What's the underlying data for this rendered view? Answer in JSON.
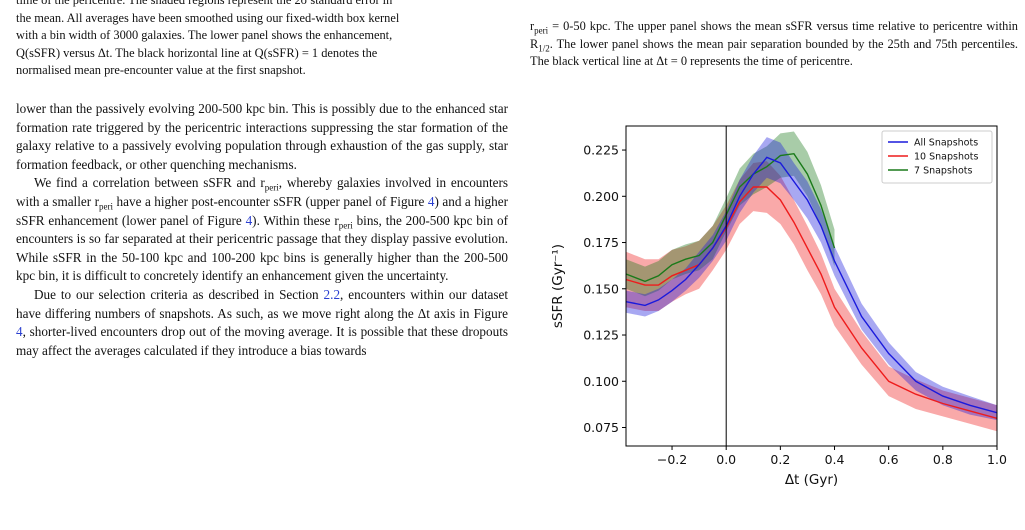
{
  "left": {
    "caption_lines": [
      "time of the pericentre. The shaded regions represent the 2σ standard error in",
      "the mean. All averages have been smoothed using our fixed-width box kernel",
      "with a bin width of 3000 galaxies. The lower panel shows the enhancement,",
      "Q(sSFR) versus Δt. The black horizontal line at Q(sSFR) = 1 denotes the",
      "normalised mean pre-encounter value at the first snapshot."
    ],
    "p1": "lower than the passively evolving 200-500 kpc bin. This is possibly due to the enhanced star formation rate triggered by the pericentric interactions suppressing the star formation of the galaxy relative to a passively evolving population through exhaustion of the gas supply, star formation feedback, or other quenching mechanisms.",
    "p2_a": "We find a correlation between sSFR and r",
    "p2_sub1": "peri",
    "p2_b": ", whereby galaxies involved in encounters with a smaller r",
    "p2_sub2": "peri",
    "p2_c": " have a higher post-encounter sSFR (upper panel of Figure ",
    "p2_ref1": "4",
    "p2_d": ") and a higher sSFR enhancement (lower panel of Figure ",
    "p2_ref2": "4",
    "p2_e": "). Within these r",
    "p2_sub3": "peri",
    "p2_f": " bins, the 200-500 kpc bin of encounters is so far separated at their pericentric passage that they display passive evolution. While sSFR in the 50-100 kpc and 100-200 kpc bins is generally higher than the 200-500 kpc bin, it is difficult to concretely identify an enhancement given the uncertainty.",
    "p3_a": "Due to our selection criteria as described in Section ",
    "p3_ref": "2.2",
    "p3_b": ", encounters within our dataset have differing numbers of snapshots. As such, as we move right along the Δt axis in Figure ",
    "p3_ref2": "4",
    "p3_c": ", shorter-lived encounters drop out of the moving average. It is possible that these dropouts may affect the averages calculated if they introduce a bias towards"
  },
  "right": {
    "cap_a": "r",
    "cap_sub1": "peri",
    "cap_b": " = 0-50 kpc. The upper panel shows the mean sSFR versus time relative to pericentre within R",
    "cap_sub2": "1/2",
    "cap_c": ". The lower panel shows the mean pair separation bounded by the 25th and 75th percentiles. The black vertical line at Δt = 0 represents the time of pericentre."
  },
  "chart_data": {
    "type": "line",
    "title": "",
    "xlabel": "Δt (Gyr)",
    "ylabel": "sSFR (Gyr⁻¹)",
    "xlim": [
      -0.37,
      1.0
    ],
    "ylim": [
      0.065,
      0.238
    ],
    "xticks": [
      -0.2,
      0.0,
      0.2,
      0.4,
      0.6,
      0.8,
      1.0
    ],
    "xtick_labels": [
      "−0.2",
      "0.0",
      "0.2",
      "0.4",
      "0.6",
      "0.8",
      "1.0"
    ],
    "yticks": [
      0.075,
      0.1,
      0.125,
      0.15,
      0.175,
      0.2,
      0.225
    ],
    "ytick_labels": [
      "0.075",
      "0.100",
      "0.125",
      "0.150",
      "0.175",
      "0.200",
      "0.225"
    ],
    "vline_x": 0.0,
    "legend_position": "top-right",
    "series": [
      {
        "name": "All Snapshots",
        "color": "#1a1adc",
        "x": [
          -0.37,
          -0.3,
          -0.25,
          -0.2,
          -0.15,
          -0.1,
          -0.05,
          0.0,
          0.05,
          0.1,
          0.15,
          0.2,
          0.25,
          0.3,
          0.35,
          0.4,
          0.5,
          0.6,
          0.7,
          0.8,
          0.9,
          1.0
        ],
        "y": [
          0.143,
          0.141,
          0.144,
          0.149,
          0.155,
          0.163,
          0.172,
          0.184,
          0.2,
          0.212,
          0.221,
          0.218,
          0.208,
          0.198,
          0.184,
          0.165,
          0.135,
          0.115,
          0.1,
          0.092,
          0.087,
          0.083
        ],
        "band": [
          0.006,
          0.006,
          0.006,
          0.006,
          0.006,
          0.007,
          0.007,
          0.008,
          0.009,
          0.01,
          0.011,
          0.011,
          0.01,
          0.01,
          0.009,
          0.008,
          0.007,
          0.006,
          0.005,
          0.005,
          0.005,
          0.004
        ]
      },
      {
        "name": "10 Snapshots",
        "color": "#ee1c1c",
        "x": [
          -0.37,
          -0.3,
          -0.25,
          -0.2,
          -0.15,
          -0.1,
          -0.05,
          0.0,
          0.05,
          0.1,
          0.15,
          0.2,
          0.25,
          0.3,
          0.35,
          0.4,
          0.5,
          0.6,
          0.7,
          0.8,
          0.9,
          1.0
        ],
        "y": [
          0.155,
          0.152,
          0.152,
          0.157,
          0.16,
          0.163,
          0.172,
          0.183,
          0.197,
          0.205,
          0.205,
          0.198,
          0.186,
          0.172,
          0.158,
          0.14,
          0.118,
          0.1,
          0.093,
          0.088,
          0.084,
          0.08
        ],
        "band": [
          0.015,
          0.014,
          0.014,
          0.014,
          0.013,
          0.013,
          0.012,
          0.012,
          0.012,
          0.013,
          0.014,
          0.013,
          0.012,
          0.012,
          0.011,
          0.01,
          0.009,
          0.008,
          0.008,
          0.007,
          0.007,
          0.007
        ]
      },
      {
        "name": "7 Snapshots",
        "color": "#1a7a1a",
        "x": [
          -0.37,
          -0.3,
          -0.25,
          -0.2,
          -0.15,
          -0.1,
          -0.05,
          0.0,
          0.05,
          0.1,
          0.15,
          0.2,
          0.25,
          0.3,
          0.35,
          0.4
        ],
        "y": [
          0.158,
          0.154,
          0.157,
          0.163,
          0.166,
          0.168,
          0.175,
          0.19,
          0.205,
          0.212,
          0.216,
          0.222,
          0.223,
          0.212,
          0.195,
          0.172
        ],
        "band": [
          0.008,
          0.008,
          0.008,
          0.008,
          0.008,
          0.008,
          0.009,
          0.009,
          0.01,
          0.011,
          0.011,
          0.012,
          0.012,
          0.012,
          0.011,
          0.01
        ]
      }
    ]
  }
}
